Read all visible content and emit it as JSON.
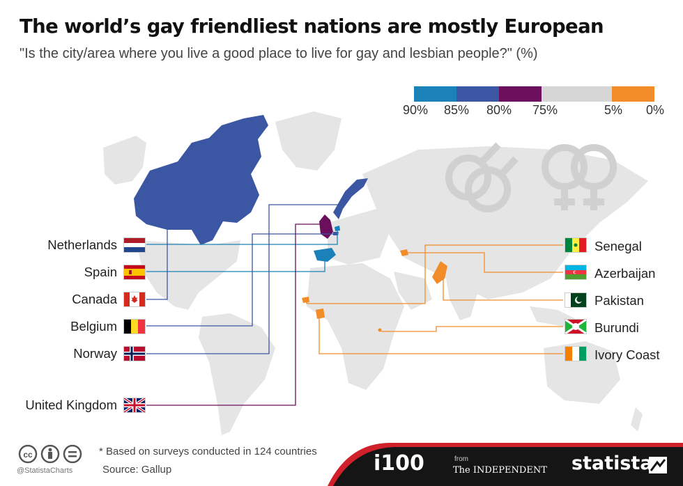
{
  "header": {
    "title": "The world’s gay friendliest nations are mostly European",
    "subtitle": "\"Is the city/area where you live a good place to live for gay and lesbian people?\" (%)"
  },
  "legend": {
    "items": [
      {
        "label": "90%",
        "color": "#1a82b8"
      },
      {
        "label": "85%",
        "color": "#3b56a3"
      },
      {
        "label": "80%",
        "color": "#6b0e5c"
      },
      {
        "label": "75%",
        "color": "#d6d6d6"
      },
      {
        "label": "5%",
        "color": "#f28c28"
      },
      {
        "label": "0%",
        "color": ""
      }
    ]
  },
  "countries_left": [
    {
      "name": "Netherlands",
      "flag": "netherlands-flag",
      "color": "#1a82b8"
    },
    {
      "name": "Spain",
      "flag": "spain-flag",
      "color": "#1a82b8"
    },
    {
      "name": "Canada",
      "flag": "canada-flag",
      "color": "#3b56a3"
    },
    {
      "name": "Belgium",
      "flag": "belgium-flag",
      "color": "#3b56a3"
    },
    {
      "name": "Norway",
      "flag": "norway-flag",
      "color": "#3b56a3"
    },
    {
      "name": "United Kingdom",
      "flag": "uk-flag",
      "color": "#6b0e5c"
    }
  ],
  "countries_right": [
    {
      "name": "Senegal",
      "flag": "senegal-flag",
      "color": "#f28c28"
    },
    {
      "name": "Azerbaijan",
      "flag": "azerbaijan-flag",
      "color": "#f28c28"
    },
    {
      "name": "Pakistan",
      "flag": "pakistan-flag",
      "color": "#f28c28"
    },
    {
      "name": "Burundi",
      "flag": "burundi-flag",
      "color": "#f28c28"
    },
    {
      "name": "Ivory Coast",
      "flag": "ivory-coast-flag",
      "color": "#f28c28"
    }
  ],
  "footer": {
    "note": "* Based on surveys conducted in 124 countries",
    "source": "Source: Gallup",
    "handle": "@StatistaCharts",
    "brand_i100": "i100",
    "brand_from": "from",
    "brand_independent": "The INDEPENDENT",
    "brand_statista": "statista"
  },
  "icons": [
    "cc-icon",
    "person-icon",
    "equals-icon",
    "male-symbol-icon",
    "female-symbol-icon",
    "statista-logo-icon"
  ]
}
